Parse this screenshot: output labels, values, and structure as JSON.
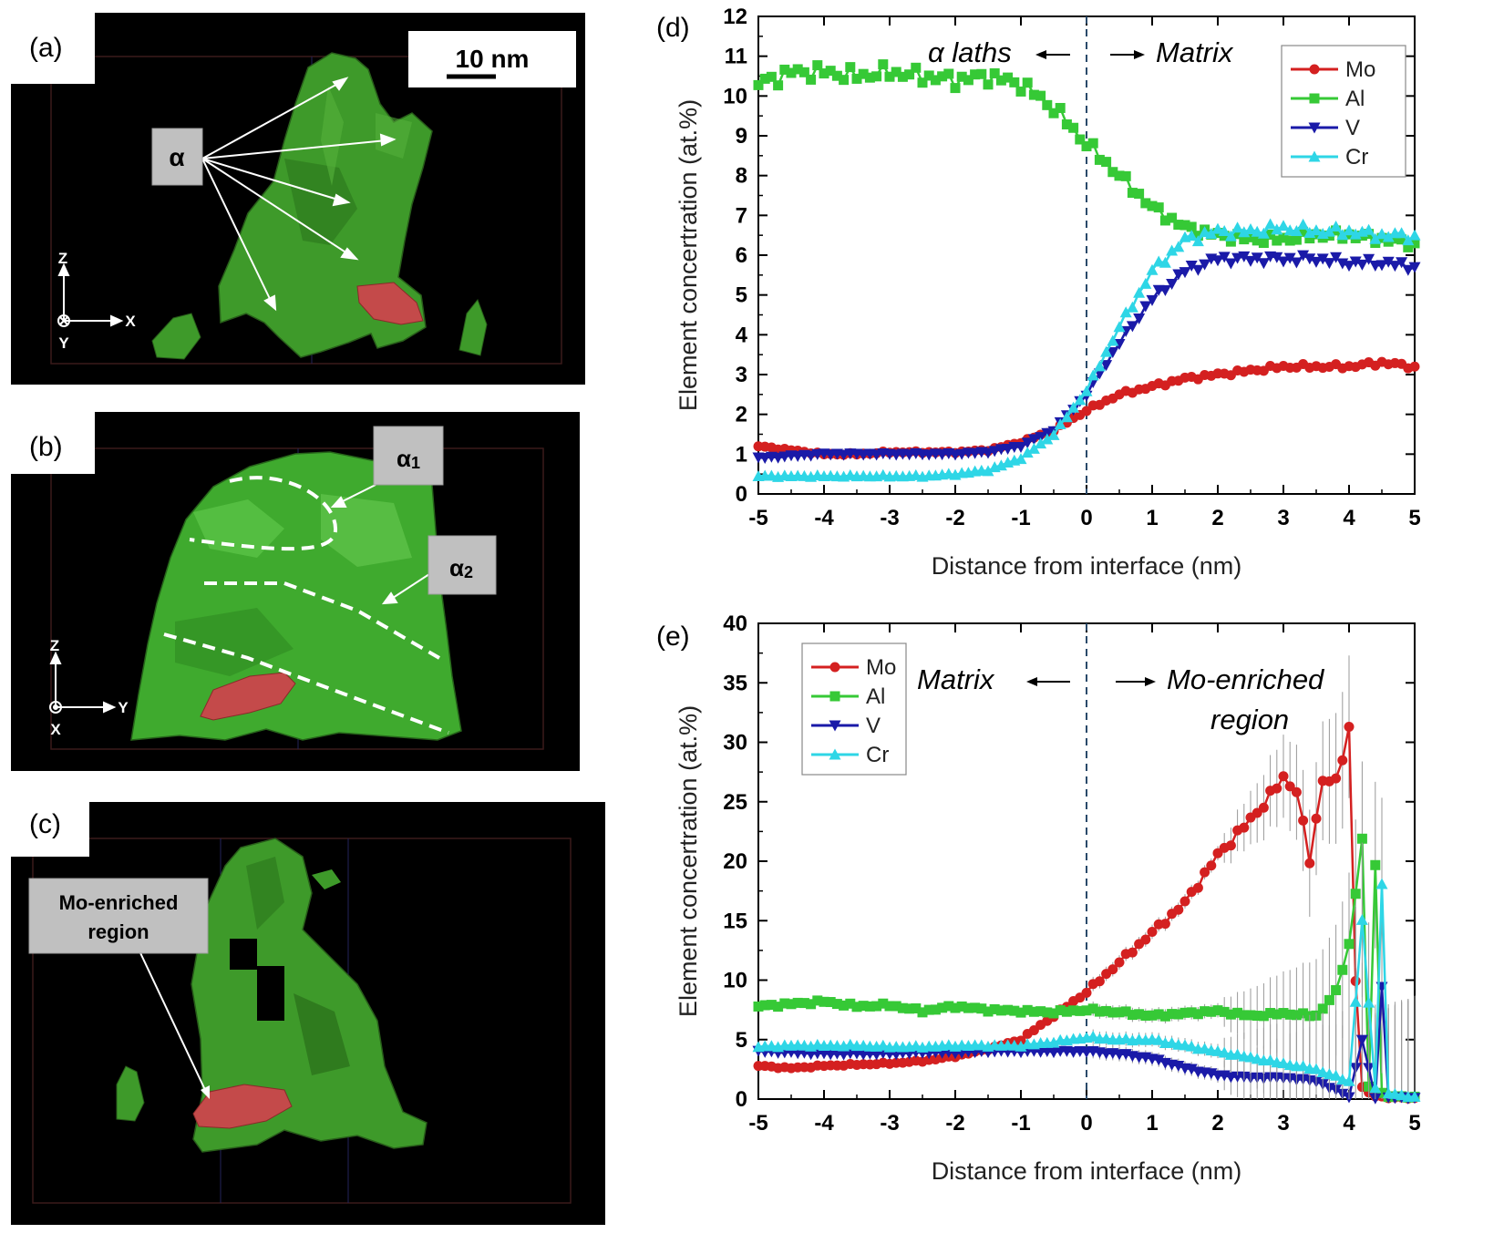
{
  "panels": {
    "a": {
      "label": "(a)",
      "scalebar": "10 nm",
      "callout": "α",
      "axes": {
        "up": "Z",
        "right": "X",
        "depth": "Y"
      }
    },
    "b": {
      "label": "(b)",
      "callout1": "α",
      "sub1": "1",
      "callout2": "α",
      "sub2": "2",
      "axes": {
        "up": "Z",
        "right": "Y",
        "depth": "X"
      }
    },
    "c": {
      "label": "(c)",
      "callout_line1": "Mo-enriched",
      "callout_line2": "region"
    },
    "d": {
      "label": "(d)",
      "left_note": "α laths",
      "right_note": "Matrix"
    },
    "e": {
      "label": "(e)",
      "left_note": "Matrix",
      "right_note_line1": "Mo-enriched",
      "right_note_line2": "region"
    }
  },
  "colors": {
    "Mo": "#d42020",
    "Al": "#36c936",
    "V": "#1a1aa8",
    "Cr": "#2ed6e6",
    "phase": "#3e9a2a",
    "enriched": "#c44a4a"
  },
  "chart_data": [
    {
      "type": "line",
      "id": "d",
      "title": "",
      "xlabel": "Distance from interface (nm)",
      "ylabel": "Element concertration (at.%)",
      "xlim": [
        -5,
        5
      ],
      "ylim": [
        0,
        12
      ],
      "xticks": [
        "-5",
        "-4",
        "-3",
        "-2",
        "-1",
        "0",
        "1",
        "2",
        "3",
        "4",
        "5"
      ],
      "yticks": [
        "0",
        "1",
        "2",
        "3",
        "4",
        "5",
        "6",
        "7",
        "8",
        "9",
        "10",
        "11",
        "12"
      ],
      "legend": "top-right",
      "interface_x": 0,
      "x": [
        -5,
        -4.5,
        -4,
        -3.5,
        -3,
        -2.5,
        -2,
        -1.5,
        -1,
        -0.5,
        0,
        0.5,
        1,
        1.5,
        2,
        2.5,
        3,
        3.5,
        4,
        4.5,
        5
      ],
      "series": [
        {
          "name": "Mo",
          "marker": "circle",
          "values": [
            1.2,
            1.1,
            1.0,
            1.0,
            1.05,
            1.05,
            1.05,
            1.1,
            1.3,
            1.6,
            2.1,
            2.5,
            2.7,
            2.9,
            3.0,
            3.1,
            3.2,
            3.2,
            3.2,
            3.3,
            3.2
          ]
        },
        {
          "name": "Al",
          "marker": "square",
          "values": [
            10.3,
            10.6,
            10.6,
            10.5,
            10.6,
            10.5,
            10.4,
            10.5,
            10.3,
            9.7,
            8.8,
            8.0,
            7.2,
            6.7,
            6.5,
            6.4,
            6.4,
            6.5,
            6.5,
            6.4,
            6.3
          ]
        },
        {
          "name": "V",
          "marker": "triangle-down",
          "values": [
            0.9,
            0.95,
            1.0,
            1.0,
            1.0,
            1.0,
            1.0,
            1.05,
            1.2,
            1.6,
            2.5,
            3.8,
            4.9,
            5.6,
            5.9,
            5.9,
            5.9,
            5.9,
            5.8,
            5.8,
            5.7
          ]
        },
        {
          "name": "Cr",
          "marker": "triangle-up",
          "values": [
            0.45,
            0.45,
            0.45,
            0.45,
            0.45,
            0.45,
            0.5,
            0.6,
            0.9,
            1.5,
            2.6,
            4.2,
            5.6,
            6.4,
            6.6,
            6.6,
            6.7,
            6.6,
            6.6,
            6.5,
            6.5
          ]
        }
      ]
    },
    {
      "type": "line",
      "id": "e",
      "title": "",
      "xlabel": "Distance from interface (nm)",
      "ylabel": "Element concertration (at.%)",
      "xlim": [
        -5,
        5
      ],
      "ylim": [
        0,
        40
      ],
      "xticks": [
        "-5",
        "-4",
        "-3",
        "-2",
        "-1",
        "0",
        "1",
        "2",
        "3",
        "4",
        "5"
      ],
      "yticks": [
        "0",
        "5",
        "10",
        "15",
        "20",
        "25",
        "30",
        "35",
        "40"
      ],
      "legend": "top-left",
      "interface_x": 0,
      "series": [
        {
          "name": "Mo",
          "marker": "circle",
          "x": [
            -5,
            -4.5,
            -4,
            -3.5,
            -3,
            -2.5,
            -2,
            -1.5,
            -1,
            -0.5,
            0,
            0.5,
            1,
            1.5,
            2,
            2.5,
            2.8,
            3.0,
            3.2,
            3.4,
            3.6,
            3.8,
            4.0,
            4.1,
            4.2,
            4.3,
            4.4,
            4.5,
            4.6,
            4.8,
            5
          ],
          "values": [
            2.8,
            2.6,
            2.8,
            2.9,
            3.0,
            3.2,
            3.6,
            4.2,
            5.0,
            7.0,
            9.0,
            11.5,
            14.0,
            16.5,
            20.5,
            23.5,
            25.5,
            27.0,
            26.0,
            20.0,
            27.0,
            26.5,
            31.2,
            10.0,
            1.0,
            0.5,
            0.3,
            0.2,
            0.1,
            0.1,
            0.1
          ]
        },
        {
          "name": "Al",
          "marker": "square",
          "x": [
            -5,
            -4.5,
            -4,
            -3.5,
            -3,
            -2.5,
            -2,
            -1.5,
            -1,
            -0.5,
            0,
            0.5,
            1,
            1.5,
            2,
            2.5,
            3,
            3.5,
            3.8,
            4.0,
            4.2,
            4.3,
            4.4,
            4.5,
            4.6,
            4.8,
            5
          ],
          "values": [
            7.8,
            8.0,
            8.2,
            7.8,
            7.9,
            7.4,
            7.8,
            7.5,
            7.4,
            7.3,
            7.5,
            7.3,
            7.0,
            7.2,
            7.4,
            7.0,
            7.2,
            7.0,
            9.0,
            13.0,
            21.8,
            1.0,
            20.0,
            0.5,
            0.2,
            0.2,
            0.2
          ]
        },
        {
          "name": "V",
          "marker": "triangle-down",
          "x": [
            -5,
            -4.5,
            -4,
            -3.5,
            -3,
            -2.5,
            -2,
            -1.5,
            -1,
            -0.5,
            0,
            0.5,
            1,
            1.5,
            2,
            2.5,
            3,
            3.5,
            4.0,
            4.2,
            4.4,
            4.5,
            4.6,
            4.8,
            5
          ],
          "values": [
            4.0,
            3.9,
            3.8,
            3.8,
            3.8,
            3.9,
            3.9,
            4.0,
            4.0,
            4.0,
            4.0,
            3.8,
            3.4,
            2.6,
            2.0,
            1.8,
            1.8,
            1.5,
            0.2,
            5.0,
            0.1,
            9.5,
            0.1,
            0.1,
            0.1
          ]
        },
        {
          "name": "Cr",
          "marker": "triangle-up",
          "x": [
            -5,
            -4.5,
            -4,
            -3.5,
            -3,
            -2.5,
            -2,
            -1.5,
            -1,
            -0.5,
            0,
            0.5,
            1,
            1.5,
            2,
            2.5,
            3,
            3.5,
            4.0,
            4.2,
            4.4,
            4.5,
            4.6,
            4.8,
            5
          ],
          "values": [
            4.4,
            4.5,
            4.5,
            4.5,
            4.4,
            4.4,
            4.5,
            4.5,
            4.5,
            4.8,
            5.2,
            5.0,
            5.0,
            4.5,
            4.0,
            3.5,
            3.0,
            2.5,
            1.5,
            15.0,
            1.0,
            18.0,
            0.5,
            0.3,
            0.2
          ]
        }
      ]
    }
  ]
}
